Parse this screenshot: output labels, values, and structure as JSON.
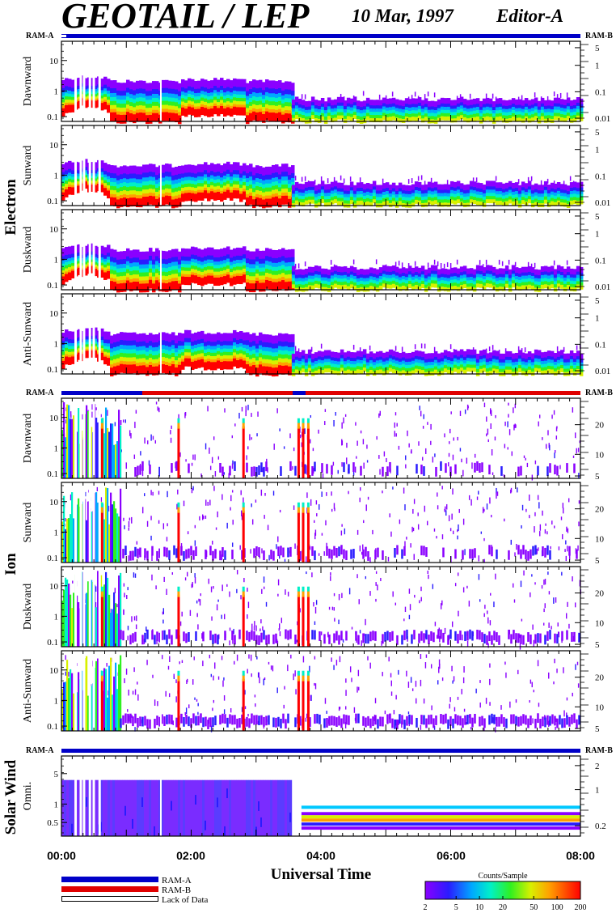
{
  "header": {
    "title": "GEOTAIL / LEP",
    "date": "10 Mar, 1997",
    "editor": "Editor-A"
  },
  "groups": [
    {
      "name": "Electron",
      "ram_left": "RAM-A",
      "ram_right": "RAM-B",
      "panels": [
        {
          "label": "Dawnward",
          "left_ticks": [
            "10",
            "1",
            "0.1"
          ],
          "right_ticks": [
            "5",
            "1",
            "0.1",
            "0.01"
          ]
        },
        {
          "label": "Sunward",
          "left_ticks": [
            "10",
            "1",
            "0.1"
          ],
          "right_ticks": [
            "5",
            "1",
            "0.1",
            "0.01"
          ]
        },
        {
          "label": "Duskward",
          "left_ticks": [
            "10",
            "1",
            "0.1"
          ],
          "right_ticks": [
            "5",
            "1",
            "0.1",
            "0.01"
          ]
        },
        {
          "label": "Anti-Sunward",
          "left_ticks": [
            "10",
            "1",
            "0.1"
          ],
          "right_ticks": [
            "5",
            "1",
            "0.1",
            "0.01"
          ]
        }
      ]
    },
    {
      "name": "Ion",
      "ram_left": "RAM-A",
      "ram_right": "RAM-B",
      "panels": [
        {
          "label": "Dawnward",
          "left_ticks": [
            "10",
            "1",
            "0.1"
          ],
          "right_ticks": [
            "20",
            "10",
            "5"
          ]
        },
        {
          "label": "Sunward",
          "left_ticks": [
            "10",
            "1",
            "0.1"
          ],
          "right_ticks": [
            "20",
            "10",
            "5"
          ]
        },
        {
          "label": "Duskward",
          "left_ticks": [
            "10",
            "1",
            "0.1"
          ],
          "right_ticks": [
            "20",
            "10",
            "5"
          ]
        },
        {
          "label": "Anti-Sunward",
          "left_ticks": [
            "10",
            "1",
            "0.1"
          ],
          "right_ticks": [
            "20",
            "10",
            "5"
          ]
        }
      ]
    },
    {
      "name": "Solar Wind",
      "ram_left": "RAM-A",
      "ram_right": "RAM-B",
      "panels": [
        {
          "label": "Omni.",
          "left_ticks": [
            "5",
            "1",
            "0.5"
          ],
          "right_ticks": [
            "2",
            "1",
            "0.2"
          ]
        }
      ]
    }
  ],
  "chart_data": {
    "type": "heatmap",
    "title": "GEOTAIL / LEP",
    "subtitle": "10 Mar, 1997 Editor-A",
    "xlabel": "Universal Time",
    "x_ticks": [
      "00:00",
      "02:00",
      "04:00",
      "06:00",
      "08:00"
    ],
    "x_range_hours": [
      0,
      8
    ],
    "y_scale": "log",
    "colorbar": {
      "title": "Counts/Sample",
      "ticks": [
        "2",
        "5",
        "10",
        "20",
        "50",
        "100",
        "200"
      ],
      "range": [
        2,
        200
      ]
    },
    "legend": [
      {
        "label": "RAM-A",
        "color": "#0000c8"
      },
      {
        "label": "RAM-B",
        "color": "#e00000"
      },
      {
        "label": "Lack of Data",
        "color": "#ffffff"
      }
    ],
    "events_hours": {
      "electron_boundary_drop": 3.55,
      "data_gaps": [
        0.2,
        0.28,
        0.33,
        0.42,
        0.48,
        0.57,
        1.52
      ],
      "ion_spikes": [
        0.62,
        1.8,
        2.8,
        3.65,
        3.72,
        3.8
      ]
    }
  },
  "colors": {
    "ram_a": "#0000c8",
    "ram_b": "#e00000"
  }
}
